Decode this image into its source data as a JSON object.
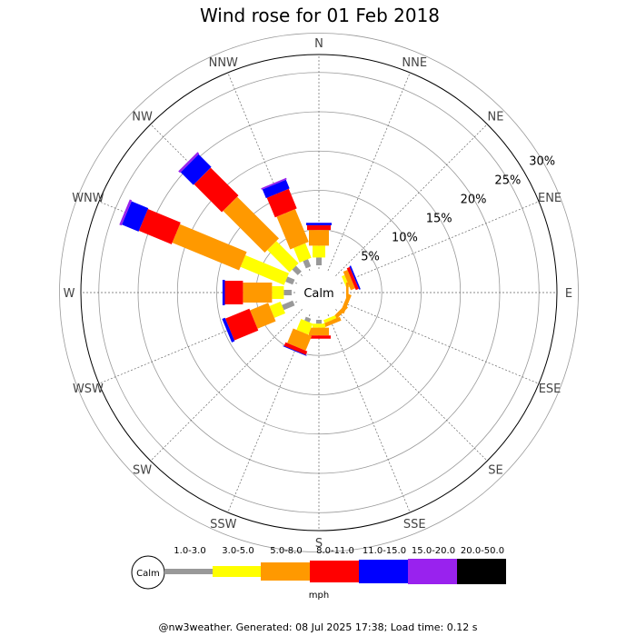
{
  "chart_data": {
    "type": "wind-rose",
    "title": "Wind rose for 01 Feb 2018",
    "calm_label": "Calm",
    "unit_label": "mph",
    "directions": [
      "N",
      "NNE",
      "NE",
      "ENE",
      "E",
      "ESE",
      "SE",
      "SSE",
      "S",
      "SSW",
      "SW",
      "WSW",
      "W",
      "WNW",
      "NW",
      "NNW"
    ],
    "rings": [
      5,
      10,
      15,
      20,
      25,
      30
    ],
    "ring_labels": [
      "5%",
      "10%",
      "15%",
      "20%",
      "25%",
      "30%"
    ],
    "speed_bins": [
      {
        "label": "1.0-3.0",
        "color": "#999999"
      },
      {
        "label": "3.0-5.0",
        "color": "#ffff00"
      },
      {
        "label": "5.0-8.0",
        "color": "#ff9900"
      },
      {
        "label": "8.0-11.0",
        "color": "#ff0000"
      },
      {
        "label": "11.0-15.0",
        "color": "#0000ff"
      },
      {
        "label": "15.0-20.0",
        "color": "#9922ee"
      },
      {
        "label": "20.0-50.0",
        "color": "#000000"
      }
    ],
    "values": [
      [
        1.0,
        1.5,
        2.0,
        0.6,
        0.3,
        0,
        0
      ],
      [
        0,
        0,
        0,
        0,
        0,
        0,
        0
      ],
      [
        0,
        0,
        0,
        0,
        0,
        0,
        0
      ],
      [
        0,
        0.4,
        0.6,
        0.4,
        0.2,
        0,
        0
      ],
      [
        0,
        0,
        0.3,
        0,
        0,
        0,
        0
      ],
      [
        0,
        0,
        0.5,
        0,
        0,
        0,
        0
      ],
      [
        0,
        0,
        0.5,
        0,
        0,
        0,
        0
      ],
      [
        0,
        0.4,
        0.5,
        0,
        0,
        0,
        0
      ],
      [
        0.5,
        0.5,
        1.0,
        0.4,
        0,
        0,
        0
      ],
      [
        0.5,
        1.5,
        2.0,
        0.5,
        0.1,
        0,
        0
      ],
      [
        0,
        0,
        0,
        0,
        0,
        0,
        0
      ],
      [
        1.5,
        1.5,
        2.5,
        3.3,
        0.4,
        0,
        0
      ],
      [
        1.0,
        1.5,
        3.7,
        2.3,
        0.3,
        0,
        0
      ],
      [
        1.0,
        6.0,
        9.2,
        4.5,
        2.3,
        0.3,
        0
      ],
      [
        1.0,
        4.0,
        7.5,
        5.0,
        2.3,
        0.3,
        0
      ],
      [
        1.0,
        2.0,
        4.5,
        2.7,
        1.2,
        0.2,
        0
      ]
    ]
  },
  "footer_text": "@nw3weather. Generated: 08 Jul 2025 17:38; Load time: 0.12 s"
}
